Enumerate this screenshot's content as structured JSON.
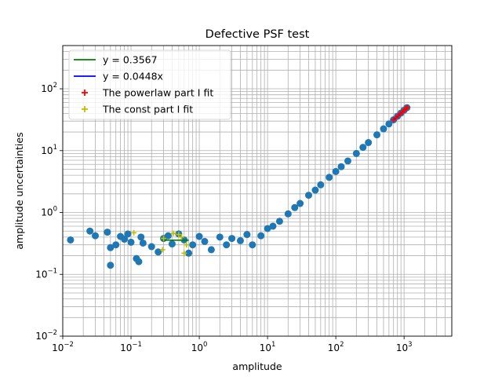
{
  "chart_data": {
    "type": "scatter",
    "title": "Defective PSF test",
    "xlabel": "amplitude",
    "ylabel": "amplitude uncertainties",
    "xscale": "log",
    "yscale": "log",
    "xlim": [
      0.01,
      5000
    ],
    "ylim": [
      0.01,
      500
    ],
    "grid": true,
    "legend_position": "upper left",
    "x_ticks": [
      {
        "value": 0.01,
        "base": "10",
        "exp": "−2"
      },
      {
        "value": 0.1,
        "base": "10",
        "exp": "−1"
      },
      {
        "value": 1,
        "base": "10",
        "exp": "0"
      },
      {
        "value": 10,
        "base": "10",
        "exp": "1"
      },
      {
        "value": 100,
        "base": "10",
        "exp": "2"
      },
      {
        "value": 1000,
        "base": "10",
        "exp": "3"
      }
    ],
    "y_ticks": [
      {
        "value": 0.01,
        "base": "10",
        "exp": "−2"
      },
      {
        "value": 0.1,
        "base": "10",
        "exp": "−1"
      },
      {
        "value": 1,
        "base": "10",
        "exp": "0"
      },
      {
        "value": 10,
        "base": "10",
        "exp": "1"
      },
      {
        "value": 100,
        "base": "10",
        "exp": "2"
      }
    ],
    "colors": {
      "points": "#1f77b4",
      "const_line": "#008000",
      "powerlaw_line": "#0000ff",
      "powerlaw_fit": "#ff0000",
      "const_fit": "#bfbf00",
      "grid": "#b0b0b0"
    },
    "series": [
      {
        "name": "",
        "kind": "scatter-dots",
        "points": [
          [
            0.013,
            0.36
          ],
          [
            0.025,
            0.5
          ],
          [
            0.03,
            0.42
          ],
          [
            0.045,
            0.48
          ],
          [
            0.05,
            0.14
          ],
          [
            0.05,
            0.27
          ],
          [
            0.06,
            0.3
          ],
          [
            0.07,
            0.41
          ],
          [
            0.08,
            0.37
          ],
          [
            0.09,
            0.45
          ],
          [
            0.1,
            0.33
          ],
          [
            0.12,
            0.18
          ],
          [
            0.13,
            0.16
          ],
          [
            0.14,
            0.4
          ],
          [
            0.15,
            0.32
          ],
          [
            0.2,
            0.28
          ],
          [
            0.25,
            0.23
          ],
          [
            0.3,
            0.38
          ],
          [
            0.35,
            0.42
          ],
          [
            0.4,
            0.31
          ],
          [
            0.5,
            0.45
          ],
          [
            0.6,
            0.36
          ],
          [
            0.7,
            0.22
          ],
          [
            0.8,
            0.3
          ],
          [
            1.0,
            0.41
          ],
          [
            1.2,
            0.34
          ],
          [
            1.5,
            0.25
          ],
          [
            2.0,
            0.4
          ],
          [
            2.5,
            0.3
          ],
          [
            3.0,
            0.38
          ],
          [
            4.0,
            0.35
          ],
          [
            5.0,
            0.44
          ],
          [
            6.0,
            0.3
          ],
          [
            8.0,
            0.42
          ],
          [
            10.0,
            0.55
          ],
          [
            12.0,
            0.6
          ],
          [
            15.0,
            0.72
          ],
          [
            20.0,
            0.95
          ],
          [
            25.0,
            1.2
          ],
          [
            30.0,
            1.4
          ],
          [
            40.0,
            1.9
          ],
          [
            50.0,
            2.3
          ],
          [
            60.0,
            2.8
          ],
          [
            80.0,
            3.7
          ],
          [
            100.0,
            4.6
          ],
          [
            120.0,
            5.5
          ],
          [
            150.0,
            6.8
          ],
          [
            200.0,
            9.0
          ],
          [
            250.0,
            11.3
          ],
          [
            300.0,
            13.5
          ],
          [
            400.0,
            18.0
          ],
          [
            500.0,
            22.5
          ],
          [
            600.0,
            27.0
          ],
          [
            700.0,
            31.5
          ],
          [
            800.0,
            36.0
          ],
          [
            900.0,
            40.5
          ],
          [
            1000.0,
            45.0
          ],
          [
            1100.0,
            49.5
          ]
        ]
      },
      {
        "name": "y = 0.3567",
        "kind": "line",
        "points": [
          [
            0.28,
            0.3567
          ],
          [
            0.7,
            0.3567
          ]
        ]
      },
      {
        "name": "y = 0.0448x",
        "kind": "line",
        "points": [
          [
            700,
            31.4
          ],
          [
            1150,
            51.5
          ]
        ]
      },
      {
        "name": "The powerlaw part I fit",
        "kind": "plus-markers",
        "points": [
          [
            700,
            31.4
          ],
          [
            760,
            34.0
          ],
          [
            820,
            36.7
          ],
          [
            880,
            39.4
          ],
          [
            940,
            42.1
          ],
          [
            1000,
            44.8
          ],
          [
            1060,
            47.5
          ],
          [
            1120,
            50.2
          ]
        ]
      },
      {
        "name": "The const part I fit",
        "kind": "plus-markers",
        "points": [
          [
            0.11,
            0.47
          ],
          [
            0.29,
            0.25
          ],
          [
            0.3,
            0.38
          ],
          [
            0.42,
            0.46
          ],
          [
            0.5,
            0.44
          ],
          [
            0.55,
            0.4
          ],
          [
            0.6,
            0.22
          ],
          [
            0.65,
            0.3
          ]
        ]
      }
    ]
  }
}
